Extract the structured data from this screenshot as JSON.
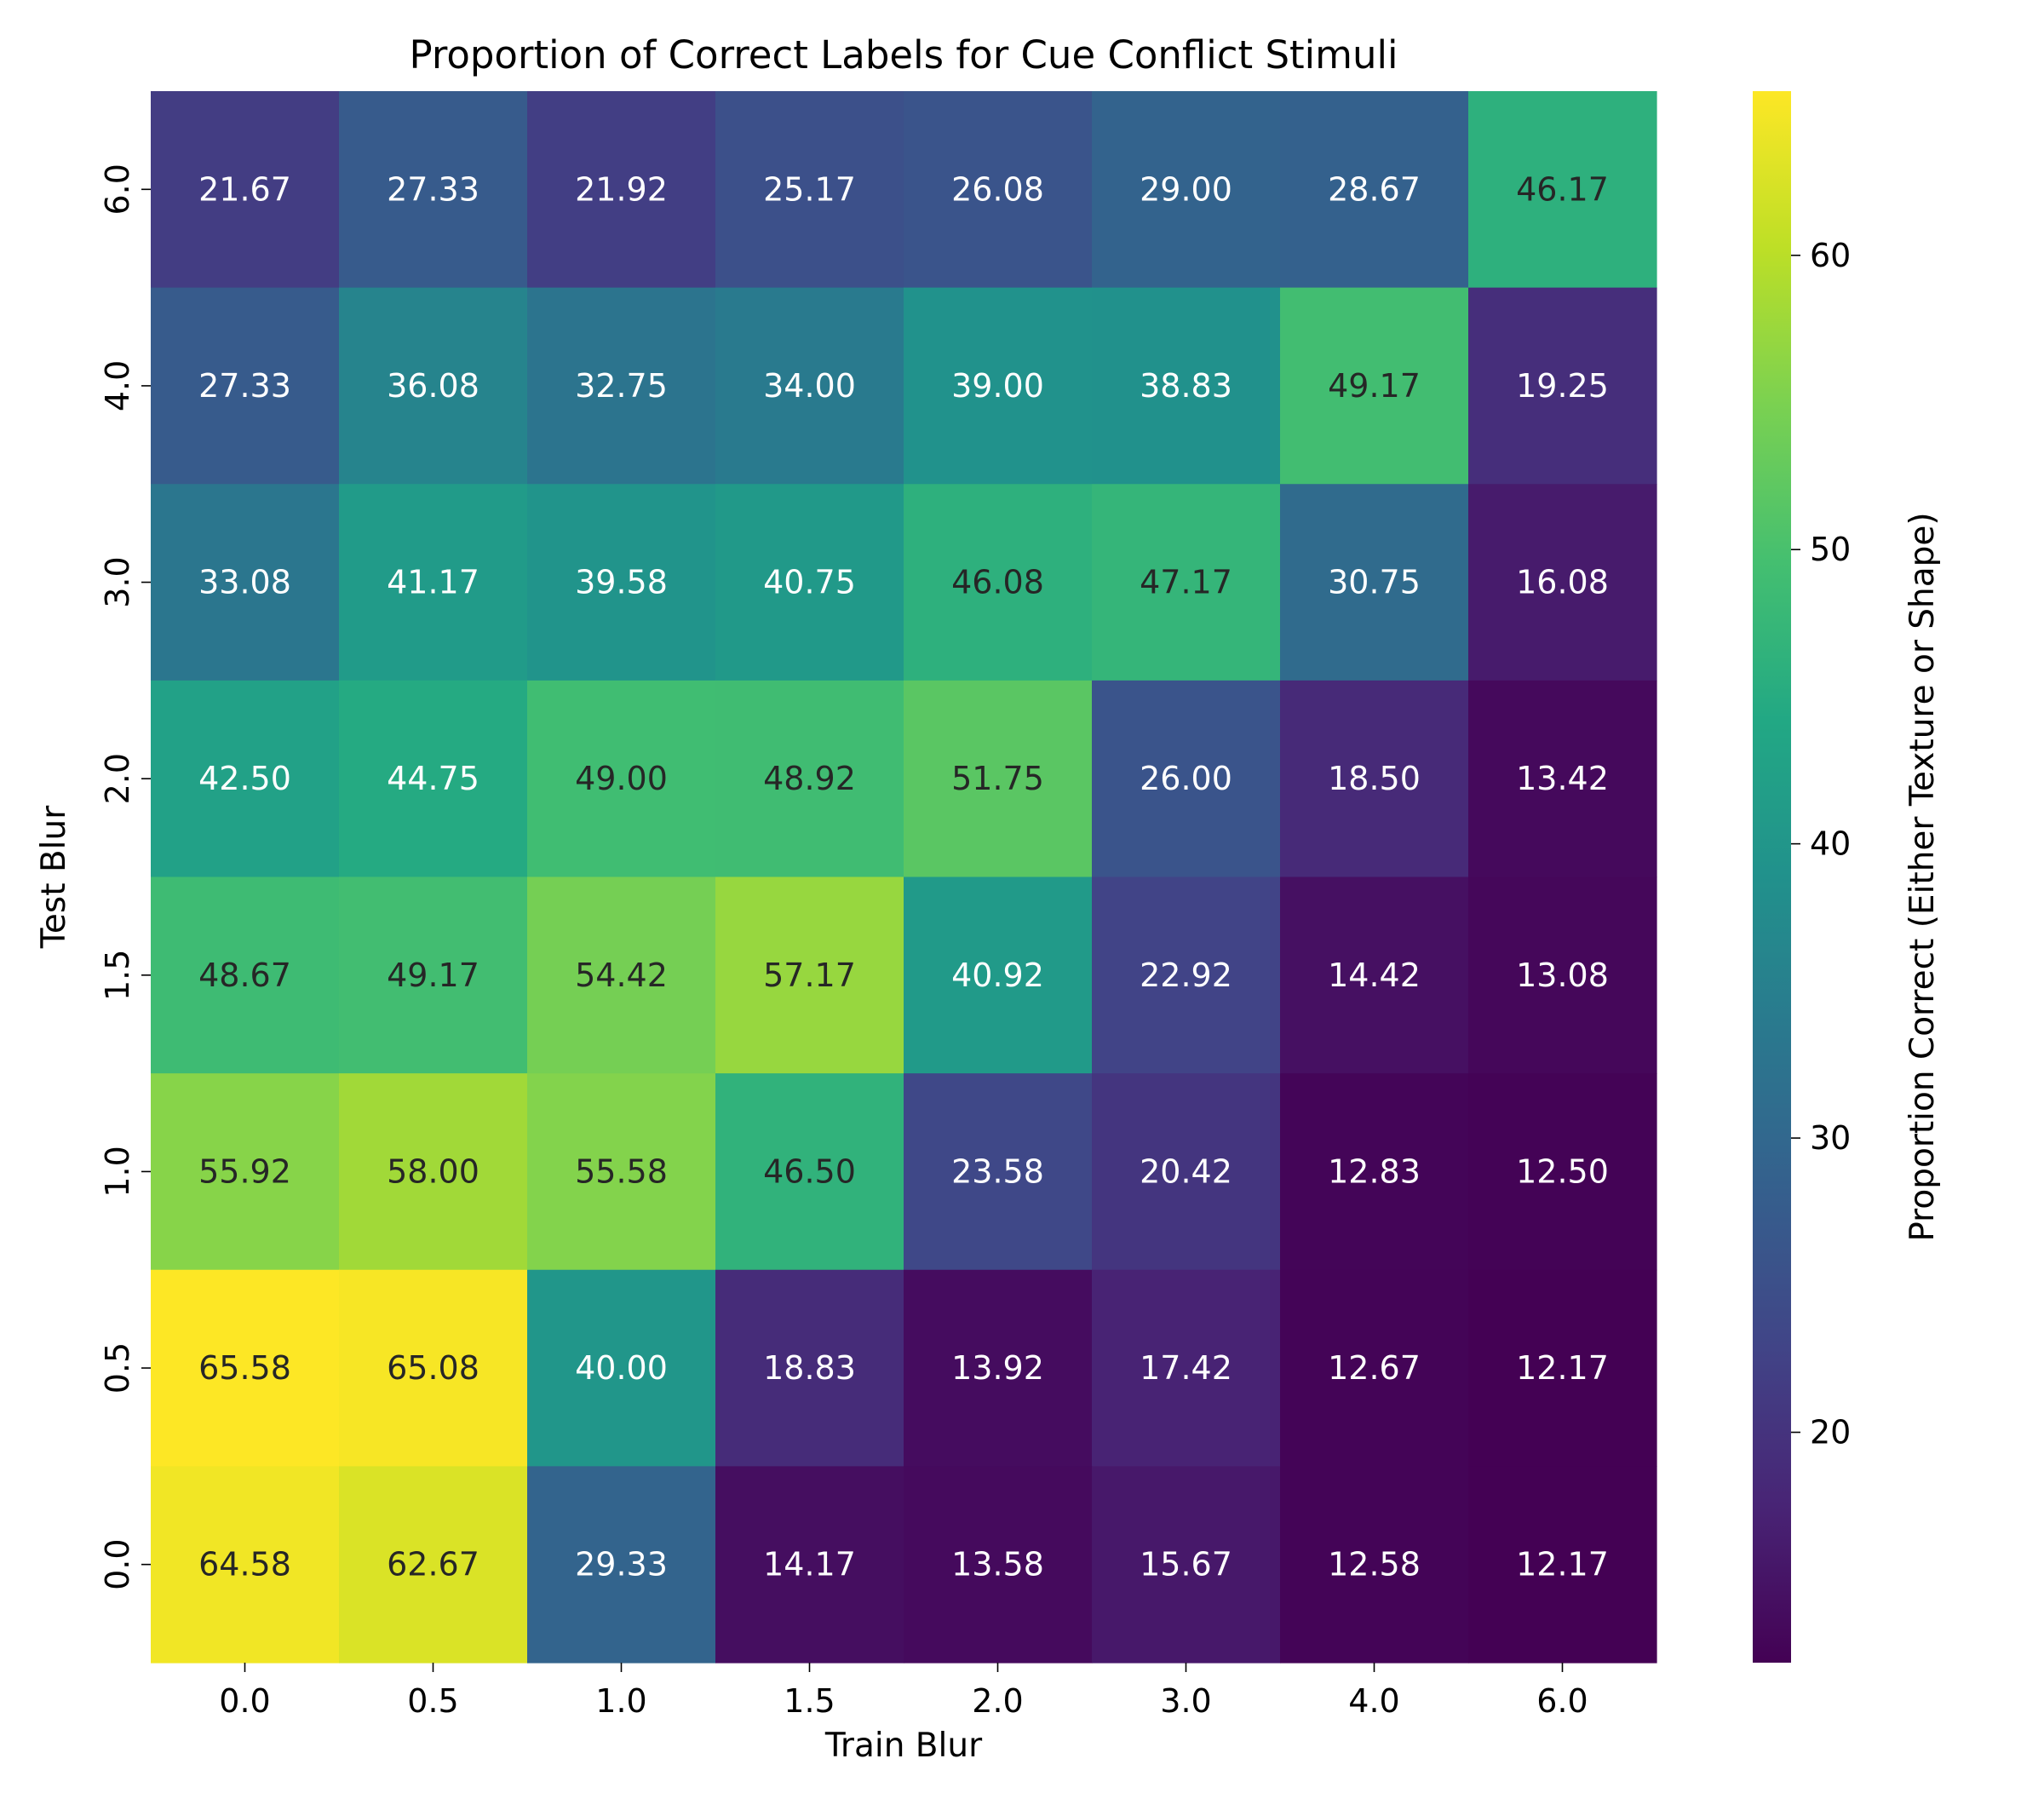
{
  "chart_data": {
    "type": "heatmap",
    "title": "Proportion of Correct Labels for Cue Conflict Stimuli",
    "xlabel": "Train Blur",
    "ylabel": "Test Blur",
    "x_categories": [
      "0.0",
      "0.5",
      "1.0",
      "1.5",
      "2.0",
      "3.0",
      "4.0",
      "6.0"
    ],
    "y_categories": [
      "6.0",
      "4.0",
      "3.0",
      "2.0",
      "1.5",
      "1.0",
      "0.5",
      "0.0"
    ],
    "values": [
      [
        21.67,
        27.33,
        21.92,
        25.17,
        26.08,
        29.0,
        28.67,
        46.17
      ],
      [
        27.33,
        36.08,
        32.75,
        34.0,
        39.0,
        38.83,
        49.17,
        19.25
      ],
      [
        33.08,
        41.17,
        39.58,
        40.75,
        46.08,
        47.17,
        30.75,
        16.08
      ],
      [
        42.5,
        44.75,
        49.0,
        48.92,
        51.75,
        26.0,
        18.5,
        13.42
      ],
      [
        48.67,
        49.17,
        54.42,
        57.17,
        40.92,
        22.92,
        14.42,
        13.08
      ],
      [
        55.92,
        58.0,
        55.58,
        46.5,
        23.58,
        20.42,
        12.83,
        12.5
      ],
      [
        65.58,
        65.08,
        40.0,
        18.83,
        13.92,
        17.42,
        12.67,
        12.17
      ],
      [
        64.58,
        62.67,
        29.33,
        14.17,
        13.58,
        15.67,
        12.58,
        12.17
      ]
    ],
    "value_format": "0.00",
    "colormap": "viridis",
    "color_range": [
      12.17,
      65.58
    ],
    "colorbar": {
      "label": "Proportion Correct (Either Texture or Shape)",
      "ticks": [
        20,
        30,
        40,
        50,
        60
      ]
    },
    "grid": false
  }
}
